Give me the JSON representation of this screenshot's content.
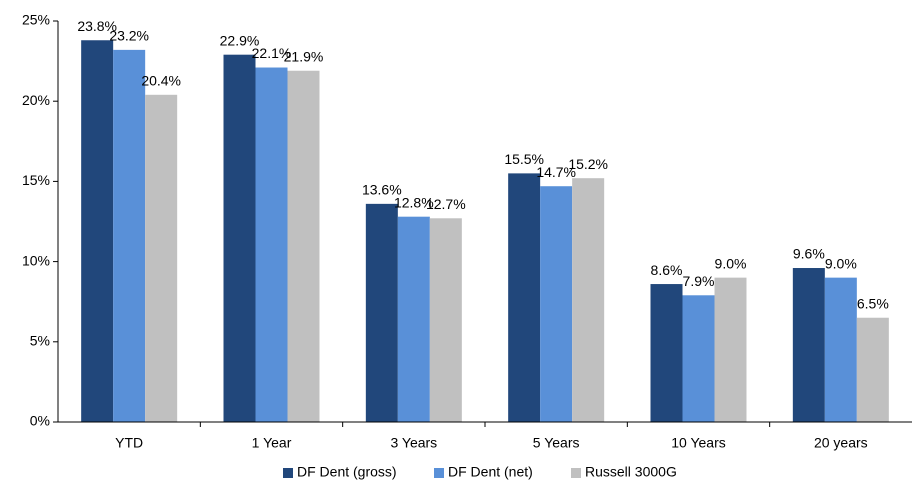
{
  "chart_data": {
    "type": "bar",
    "categories": [
      "YTD",
      "1 Year",
      "3 Years",
      "5 Years",
      "10 Years",
      "20 years"
    ],
    "series": [
      {
        "name": "DF Dent (gross)",
        "color": "#21477b",
        "values": [
          23.8,
          22.9,
          13.6,
          15.5,
          8.6,
          9.6
        ],
        "value_labels": [
          "23.8%",
          "22.9%",
          "13.6%",
          "15.5%",
          "8.6%",
          "9.6%"
        ]
      },
      {
        "name": "DF Dent (net)",
        "color": "#5990d8",
        "values": [
          23.2,
          22.1,
          12.8,
          14.7,
          7.9,
          9.0
        ],
        "value_labels": [
          "23.2%",
          "22.1%",
          "12.8%",
          "14.7%",
          "7.9%",
          "9.0%"
        ]
      },
      {
        "name": "Russell 3000G",
        "color": "#c0c0c0",
        "values": [
          20.4,
          21.9,
          12.7,
          15.2,
          9.0,
          6.5
        ],
        "value_labels": [
          "20.4%",
          "21.9%",
          "12.7%",
          "15.2%",
          "9.0%",
          "6.5%"
        ]
      }
    ],
    "ylim": [
      0,
      25
    ],
    "yticks": [
      {
        "value": 0,
        "label": "0%"
      },
      {
        "value": 5,
        "label": "5%"
      },
      {
        "value": 10,
        "label": "10%"
      },
      {
        "value": 15,
        "label": "15%"
      },
      {
        "value": 20,
        "label": "20%"
      },
      {
        "value": 25,
        "label": "25%"
      }
    ],
    "grid": false,
    "legend": "bottom"
  }
}
